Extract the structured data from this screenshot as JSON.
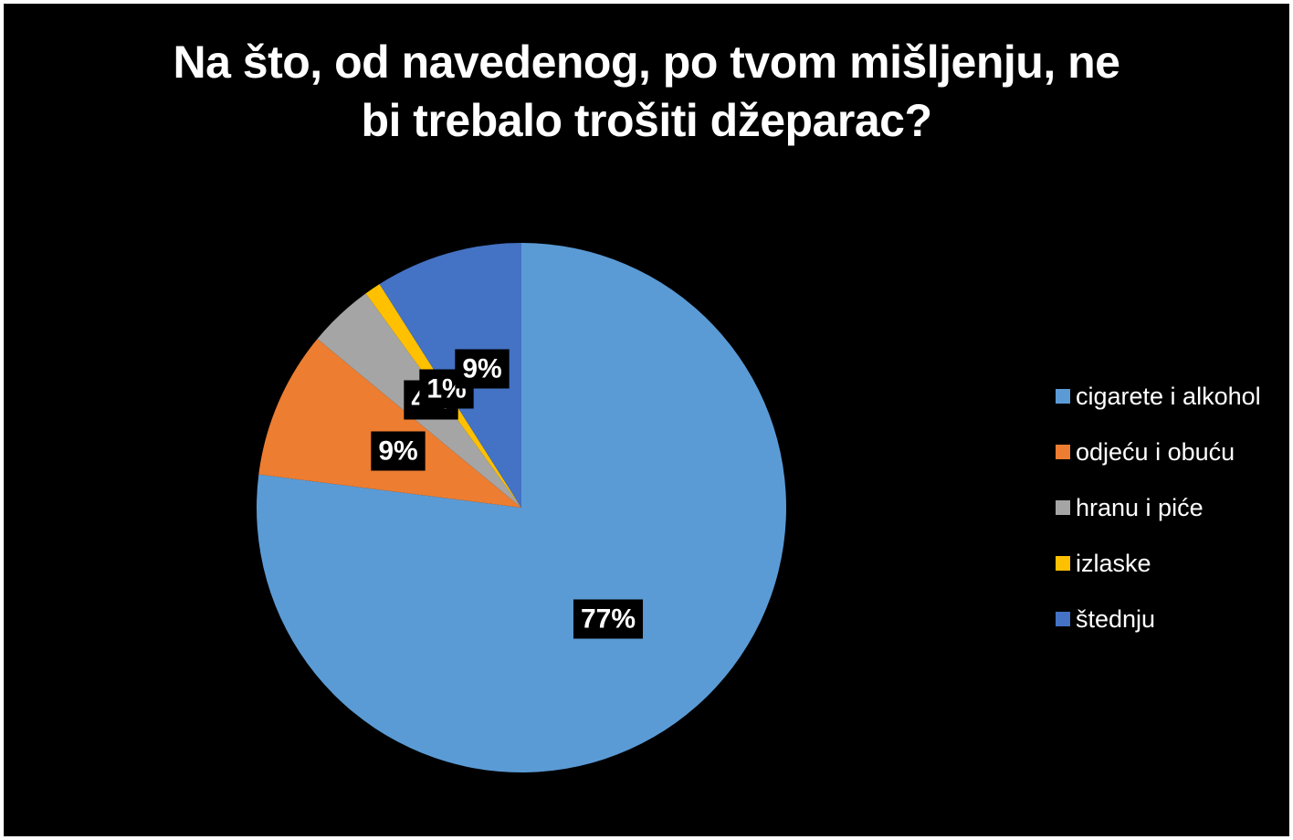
{
  "chart_data": {
    "type": "pie",
    "title_lines": [
      "Na što, od navedenog, po tvom mišljenju, ne",
      "bi trebalo trošiti džeparac?"
    ],
    "series": [
      {
        "name": "cigarete i alkohol",
        "value": 77,
        "label": "77%",
        "color": "#5B9BD5"
      },
      {
        "name": "odjeću i obuću",
        "value": 9,
        "label": "9%",
        "color": "#ED7D31"
      },
      {
        "name": "hranu i piće",
        "value": 4,
        "label": "4%",
        "color": "#A5A5A5"
      },
      {
        "name": "izlaske",
        "value": 1,
        "label": "1%",
        "color": "#FFC000"
      },
      {
        "name": "štednju",
        "value": 9,
        "label": "9%",
        "color": "#4472C4"
      }
    ],
    "start_angle": "top, clockwise",
    "legend_position": "right",
    "background_color": "#000000"
  }
}
